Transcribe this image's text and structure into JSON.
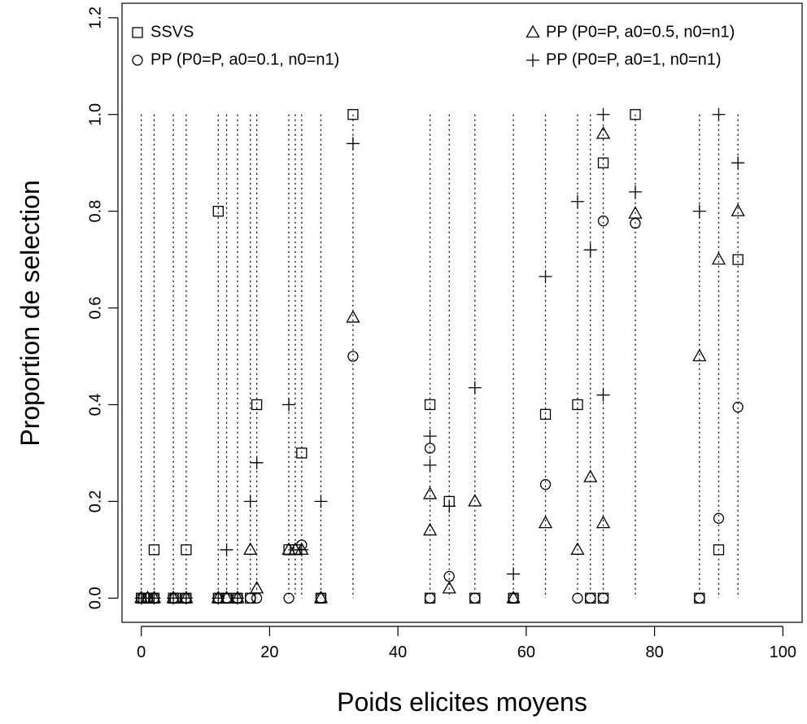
{
  "chart_data": {
    "type": "scatter",
    "title": "",
    "xlabel": "Poids elicites moyens",
    "ylabel": "Proportion de selection",
    "xlim": [
      -3,
      103
    ],
    "ylim": [
      -0.05,
      1.23
    ],
    "xticks": [
      "0",
      "20",
      "40",
      "60",
      "80",
      "100"
    ],
    "yticks": [
      "0.0",
      "0.2",
      "0.4",
      "0.6",
      "0.8",
      "1.0",
      "1.2"
    ],
    "legend_position": "top",
    "vertical_guides_x": [
      0,
      2,
      5,
      7,
      12,
      13.3,
      15,
      17,
      18,
      23,
      24,
      25,
      28,
      33,
      45,
      48,
      52,
      58,
      63,
      68,
      70,
      72,
      77,
      87,
      90,
      93
    ],
    "series": [
      {
        "name": "SSVS",
        "marker": "square",
        "points": [
          [
            0,
            0
          ],
          [
            0.4,
            0
          ],
          [
            1,
            0
          ],
          [
            2,
            0.1
          ],
          [
            2,
            0
          ],
          [
            5,
            0
          ],
          [
            5.3,
            0
          ],
          [
            7,
            0.1
          ],
          [
            7,
            0
          ],
          [
            12,
            0.8
          ],
          [
            12,
            0
          ],
          [
            13.3,
            0
          ],
          [
            15,
            0
          ],
          [
            17,
            0
          ],
          [
            18,
            0.4
          ],
          [
            23,
            0.1
          ],
          [
            24,
            0.1
          ],
          [
            25,
            0.3
          ],
          [
            28,
            0
          ],
          [
            33,
            1.0
          ],
          [
            45,
            0.4
          ],
          [
            45,
            0
          ],
          [
            48,
            0.2
          ],
          [
            52,
            0
          ],
          [
            58,
            0
          ],
          [
            63,
            0.38
          ],
          [
            68,
            0.4
          ],
          [
            70,
            0
          ],
          [
            72,
            0.9
          ],
          [
            72,
            0
          ],
          [
            77,
            1.0
          ],
          [
            87,
            0
          ],
          [
            90,
            0.1
          ],
          [
            93,
            0.7
          ]
        ]
      },
      {
        "name": "PP (P0=P, a0=0.1, n0=n1)",
        "marker": "circle",
        "points": [
          [
            0,
            0
          ],
          [
            1,
            0
          ],
          [
            2,
            0
          ],
          [
            5,
            0
          ],
          [
            7,
            0
          ],
          [
            12,
            0
          ],
          [
            13.3,
            0
          ],
          [
            15,
            0
          ],
          [
            17,
            0
          ],
          [
            18,
            0
          ],
          [
            23,
            0
          ],
          [
            25,
            0.11
          ],
          [
            28,
            0
          ],
          [
            33,
            0.5
          ],
          [
            45,
            0.31
          ],
          [
            45,
            0
          ],
          [
            48,
            0.045
          ],
          [
            52,
            0
          ],
          [
            58,
            0
          ],
          [
            63,
            0.235
          ],
          [
            68,
            0
          ],
          [
            70,
            0
          ],
          [
            72,
            0.78
          ],
          [
            72,
            0
          ],
          [
            77,
            0.775
          ],
          [
            87,
            0
          ],
          [
            90,
            0.165
          ],
          [
            93,
            0.395
          ]
        ]
      },
      {
        "name": "PP (P0=P, a0=0.5, n0=n1)",
        "marker": "triangle",
        "points": [
          [
            0,
            0
          ],
          [
            1,
            0
          ],
          [
            2,
            0
          ],
          [
            5,
            0
          ],
          [
            7,
            0
          ],
          [
            12,
            0
          ],
          [
            13.3,
            0
          ],
          [
            15,
            0
          ],
          [
            17,
            0.1
          ],
          [
            18,
            0.02
          ],
          [
            23,
            0.1
          ],
          [
            24,
            0.1
          ],
          [
            25,
            0.1
          ],
          [
            28,
            0
          ],
          [
            33,
            0.58
          ],
          [
            45,
            0.215
          ],
          [
            45,
            0.14
          ],
          [
            48,
            0.02
          ],
          [
            52,
            0.2
          ],
          [
            58,
            0
          ],
          [
            63,
            0.155
          ],
          [
            68,
            0.1
          ],
          [
            70,
            0.25
          ],
          [
            72,
            0.96
          ],
          [
            72,
            0.155
          ],
          [
            77,
            0.795
          ],
          [
            87,
            0.5
          ],
          [
            90,
            0.7
          ],
          [
            93,
            0.8
          ]
        ]
      },
      {
        "name": "PP (P0=P, a0=1, n0=n1)",
        "marker": "plus",
        "points": [
          [
            0,
            0
          ],
          [
            2,
            0
          ],
          [
            5,
            0
          ],
          [
            7,
            0
          ],
          [
            12,
            0
          ],
          [
            13.3,
            0.1
          ],
          [
            15,
            0
          ],
          [
            17,
            0.2
          ],
          [
            18,
            0.28
          ],
          [
            23,
            0.4
          ],
          [
            25,
            0.1
          ],
          [
            28,
            0.2
          ],
          [
            33,
            0.94
          ],
          [
            45,
            0.335
          ],
          [
            45,
            0.275
          ],
          [
            48,
            0.19
          ],
          [
            52,
            0.435
          ],
          [
            58,
            0.05
          ],
          [
            63,
            0.665
          ],
          [
            68,
            0.82
          ],
          [
            70,
            0.72
          ],
          [
            72,
            1.0
          ],
          [
            72,
            0.42
          ],
          [
            77,
            0.84
          ],
          [
            87,
            0.8
          ],
          [
            90,
            1.0
          ],
          [
            93,
            0.9
          ]
        ]
      }
    ]
  }
}
